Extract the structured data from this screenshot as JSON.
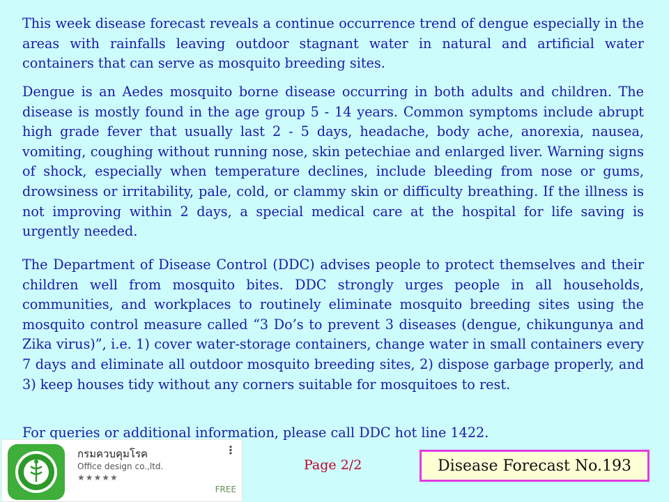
{
  "paragraphs": {
    "p1": "This week disease forecast reveals a continue occurrence trend of dengue especially in the areas with rainfalls leaving outdoor stagnant water in natural and artificial water containers that can serve as mosquito breeding sites.",
    "p2": "Dengue is an Aedes mosquito borne disease occurring in both adults and children. The disease is mostly found in the age group 5 - 14 years. Common symptoms include abrupt high grade fever that usually last 2 - 5 days, headache, body ache, anorexia, nausea, vomiting, coughing without running nose, skin petechiae and enlarged liver. Warning signs of shock, especially when temperature declines, include bleeding from nose or gums, drowsiness or irritability, pale, cold, or clammy skin or difficulty breathing. If the illness is not improving within 2 days, a special medical care at the hospital for life saving is urgently needed.",
    "p3": "The Department of Disease Control (DDC) advises people to protect themselves and their children well from mosquito bites. DDC strongly urges people in all households, communities, and workplaces to routinely eliminate mosquito breeding sites using the mosquito control measure called “3 Do’s to prevent 3 diseases (dengue, chikungunya and Zika virus)”, i.e. 1) cover water-storage containers, change water in small containers every 7 days and eliminate all outdoor mosquito breeding sites, 2) dispose garbage properly, and 3) keep houses tidy without any corners suitable for mosquitoes to rest.",
    "p4": "For queries or additional information, please call DDC hot line 1422."
  },
  "app_card": {
    "name": "กรมควบคุมโรค",
    "developer": "Office design co.,ltd.",
    "rating": "★★★★★",
    "price": "FREE",
    "menu_glyph": "⋮",
    "icon": "ddc-logo-icon",
    "icon_color": "#3fae3a"
  },
  "footer": {
    "page": "Page 2/2",
    "forecast_label": "Disease Forecast No.193"
  },
  "colors": {
    "background": "#ccfcfc",
    "body_text": "#1a1aa8",
    "page_number": "#c0002a",
    "box_border": "#e23ae2",
    "box_fill": "#ffffd6"
  }
}
